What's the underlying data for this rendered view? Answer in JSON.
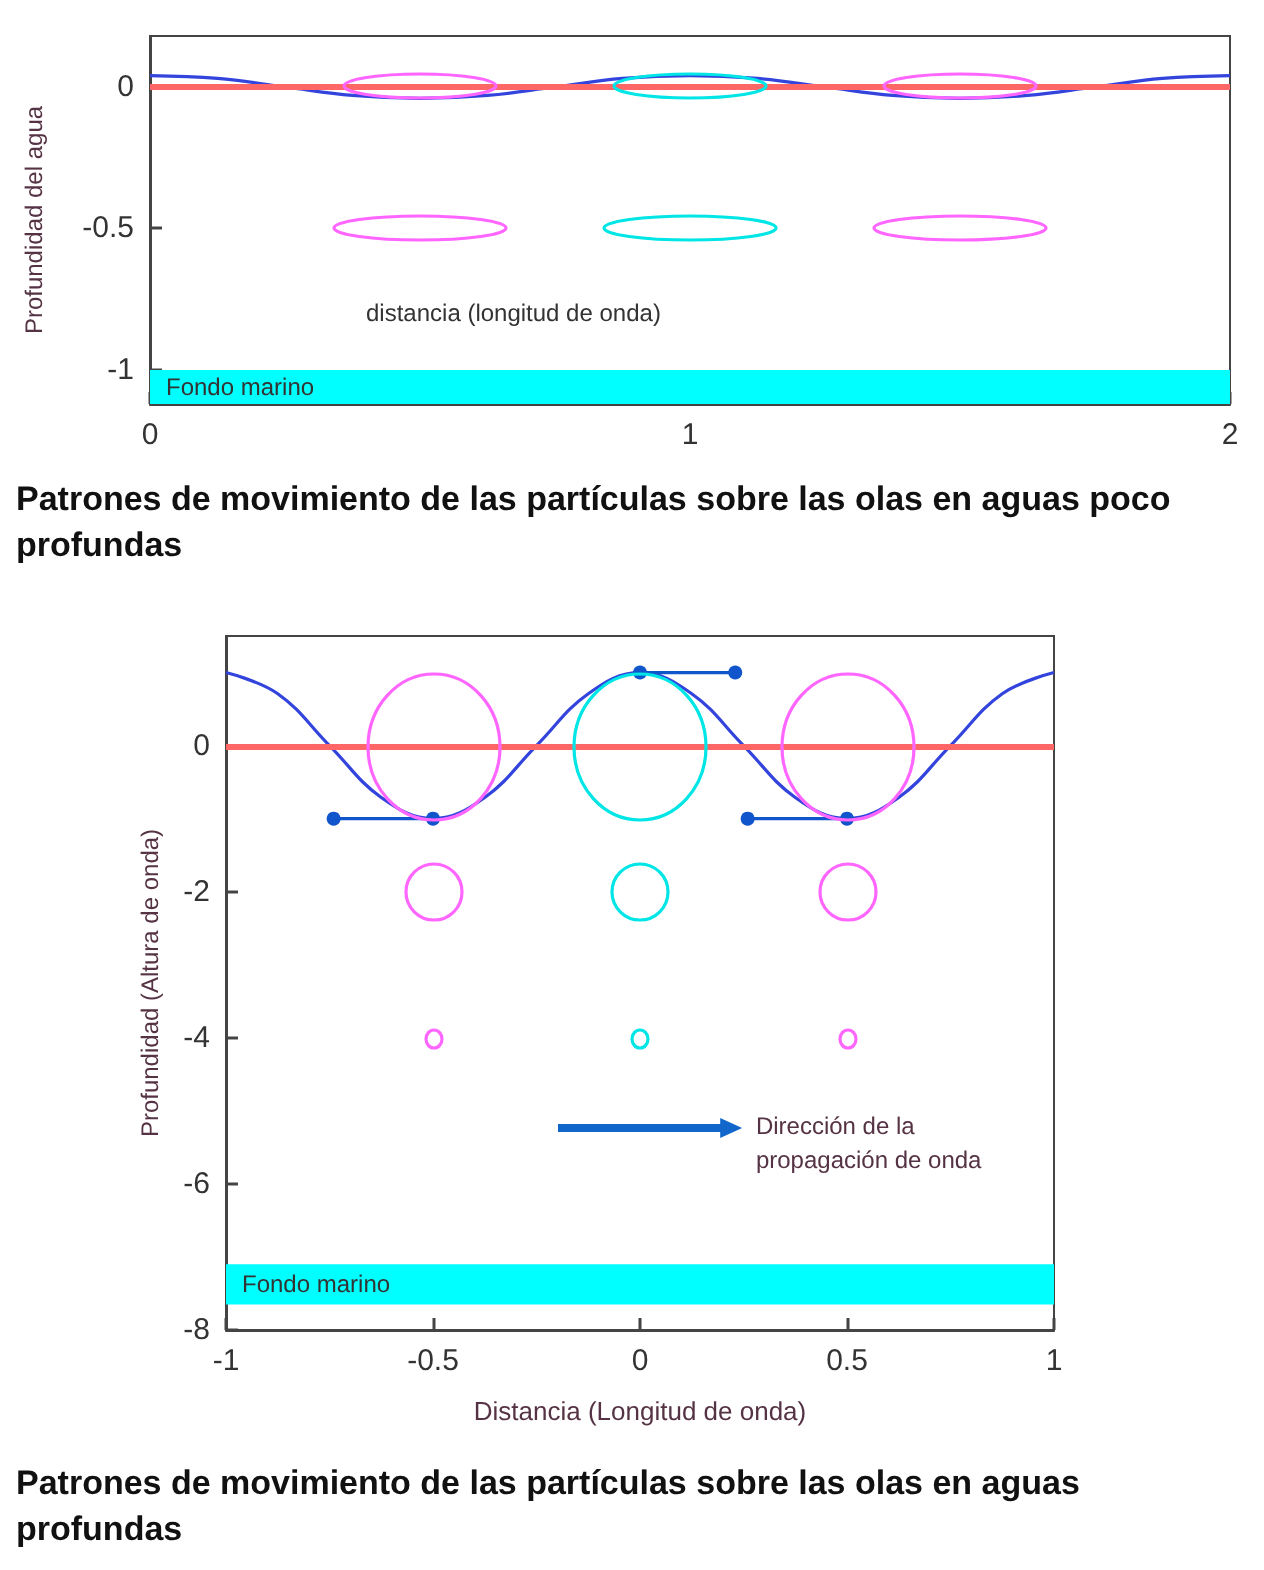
{
  "chart_data": [
    {
      "type": "line",
      "title": "Patrones de movimiento de las partículas sobre las olas en aguas poco profundas",
      "xlabel": "distancia (longitud de onda)",
      "ylabel": "Profundidad del agua",
      "xlim": [
        0,
        2
      ],
      "ylim": [
        -1.12,
        0.18
      ],
      "xticks": [
        0,
        1,
        2
      ],
      "yticks": [
        -1,
        -0.5,
        0
      ],
      "ref_lines": [
        {
          "axis": "y",
          "value": 0,
          "color": "#ff6666"
        }
      ],
      "bands": [
        {
          "axis": "y",
          "from": -1.12,
          "to": -1,
          "label": "Fondo marino",
          "color": "#00ffff"
        }
      ],
      "series": [
        {
          "color": "#3344dd",
          "marker": "none",
          "x": [
            0,
            0.125,
            0.25,
            0.375,
            0.5,
            0.625,
            0.75,
            0.875,
            1,
            1.125,
            1.25,
            1.375,
            1.5,
            1.625,
            1.75,
            1.875,
            2
          ],
          "values": [
            0.04,
            0.03,
            0,
            -0.03,
            -0.04,
            -0.03,
            0,
            0.03,
            0.04,
            0.03,
            0,
            -0.03,
            -0.04,
            -0.03,
            0,
            0.03,
            0.04
          ]
        }
      ]
    },
    {
      "type": "line",
      "title": "Patrones de movimiento de las partículas sobre las olas en aguas profundas",
      "xlabel": "Distancia (Longitud de onda)",
      "ylabel": "Profundidad (Altura de onda)",
      "xlim": [
        -1,
        1
      ],
      "ylim": [
        -8,
        1.5
      ],
      "xticks": [
        -1,
        -0.5,
        0,
        0.5,
        1
      ],
      "yticks": [
        -8,
        -6,
        -4,
        -2,
        0
      ],
      "annotations": [
        "Dirección de la propagación de onda"
      ],
      "ref_lines": [
        {
          "axis": "y",
          "value": 0,
          "color": "#ff6666"
        }
      ],
      "bands": [
        {
          "axis": "y",
          "from": -7.65,
          "to": -7.1,
          "label": "Fondo marino",
          "color": "#00ffff"
        }
      ],
      "series": [
        {
          "color": "#3344dd",
          "marker": "none",
          "x": [
            -1,
            -0.875,
            -0.75,
            -0.625,
            -0.5,
            -0.375,
            -0.25,
            -0.125,
            0,
            0.125,
            0.25,
            0.375,
            0.5,
            0.625,
            0.75,
            0.875,
            1
          ],
          "values": [
            1,
            0.71,
            0,
            -0.71,
            -1,
            -0.71,
            0,
            0.71,
            1,
            0.71,
            0,
            -0.71,
            -1,
            -0.71,
            0,
            0.71,
            1
          ]
        },
        {
          "color": "#1155cc",
          "marker": "circle",
          "x": [
            0,
            0.23
          ],
          "values": [
            1,
            1
          ]
        },
        {
          "color": "#1155cc",
          "marker": "circle",
          "x": [
            -0.5,
            -0.74
          ],
          "values": [
            -1,
            -1
          ]
        },
        {
          "color": "#1155cc",
          "marker": "circle",
          "x": [
            0.5,
            0.26
          ],
          "values": [
            -1,
            -1
          ]
        }
      ]
    }
  ]
}
